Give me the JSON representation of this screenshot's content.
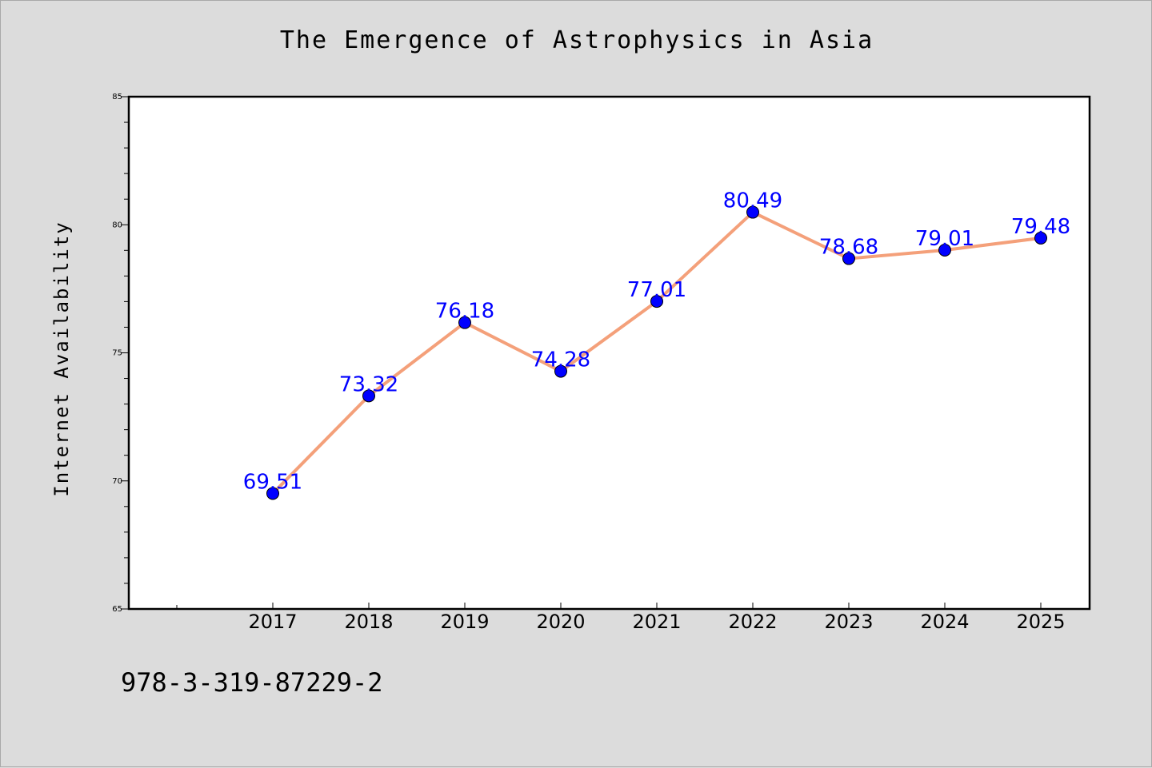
{
  "chart_data": {
    "type": "line",
    "title": "The Emergence of Astrophysics in Asia",
    "xlabel": "",
    "ylabel": "Internet Availability",
    "x": [
      "2017",
      "2018",
      "2019",
      "2020",
      "2021",
      "2022",
      "2023",
      "2024",
      "2025"
    ],
    "series": [
      {
        "values": [
          69.51,
          73.32,
          76.18,
          74.28,
          77.01,
          80.49,
          78.68,
          79.01,
          79.48
        ],
        "labels": [
          "69.51",
          "73.32",
          "76.18",
          "74.28",
          "77.01",
          "80.49",
          "78.68",
          "79.01",
          "79.48"
        ]
      }
    ],
    "ylim": [
      65,
      85
    ],
    "yticks": [
      "65",
      "70",
      "75",
      "80",
      "85"
    ],
    "grid": false,
    "legend": "none",
    "line_color": "#f4a07a",
    "marker_color": "#0000ff",
    "label_color": "#0000ff"
  },
  "footnote": "978-3-319-87229-2"
}
